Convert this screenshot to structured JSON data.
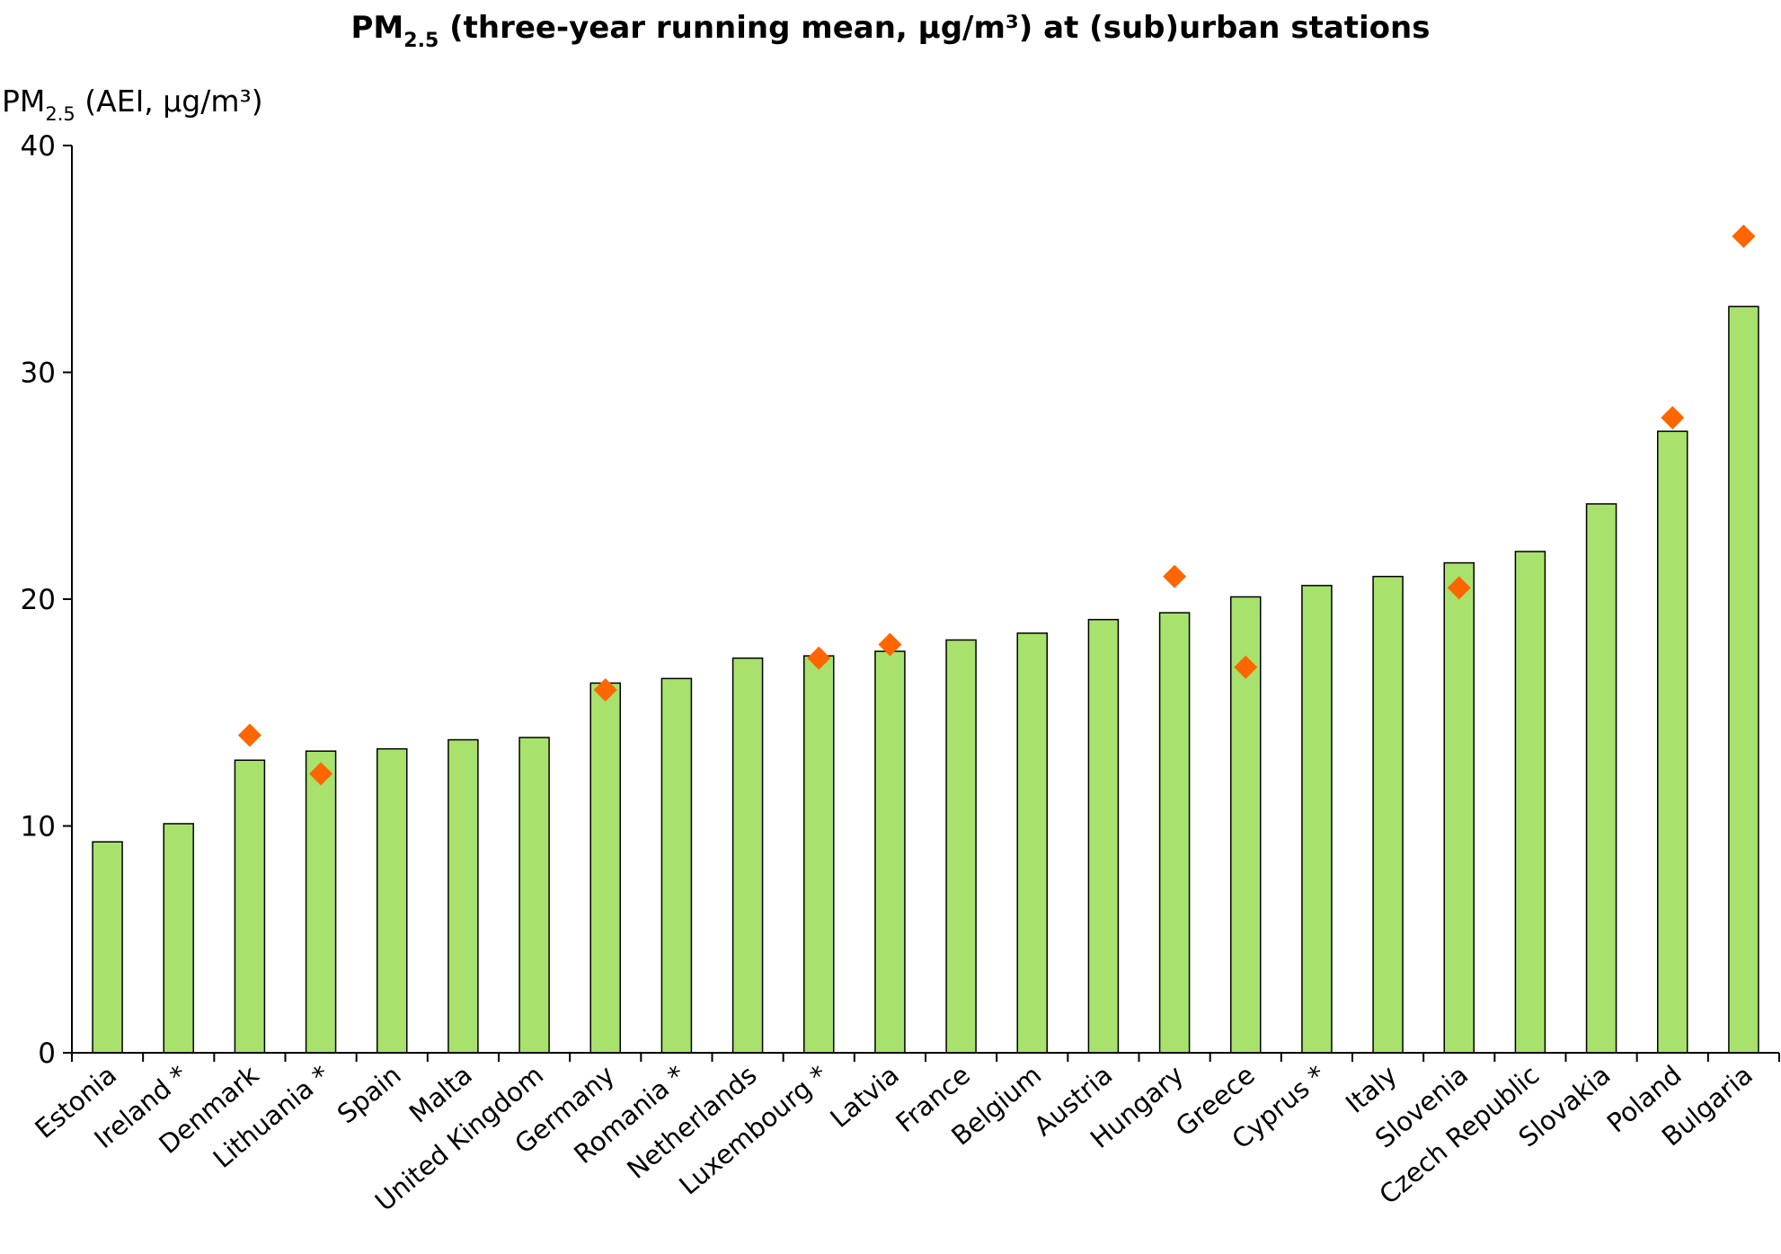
{
  "chart_data": {
    "type": "bar",
    "title": {
      "main": "PM",
      "sub": "2.5",
      "rest": " (three-year running mean, µg/m³) at (sub)urban stations"
    },
    "ylabel": {
      "main": "PM",
      "sub": "2.5",
      "rest": " (AEI, µg/m³)"
    },
    "ylim": [
      0,
      40
    ],
    "yticks": [
      "0",
      "10",
      "20",
      "30",
      "40"
    ],
    "grid": false,
    "legend": "none",
    "categories": [
      "Estonia",
      "Ireland *",
      "Denmark",
      "Lithuania *",
      "Spain",
      "Malta",
      "United Kingdom",
      "Germany",
      "Romania *",
      "Netherlands",
      "Luxembourg *",
      "Latvia",
      "France",
      "Belgium",
      "Austria",
      "Hungary",
      "Greece",
      "Cyprus *",
      "Italy",
      "Slovenia",
      "Czech Republic",
      "Slovakia",
      "Poland",
      "Bulgaria"
    ],
    "series": [
      {
        "type": "bar",
        "color": "#a8e26c",
        "values": [
          9.3,
          10.1,
          12.9,
          13.3,
          13.4,
          13.8,
          13.9,
          16.3,
          16.5,
          17.4,
          17.5,
          17.7,
          18.2,
          18.5,
          19.1,
          19.4,
          20.1,
          20.6,
          21.0,
          21.6,
          22.1,
          24.2,
          27.4,
          32.9
        ]
      },
      {
        "type": "marker",
        "shape": "diamond",
        "color": "#ff6600",
        "values": [
          null,
          null,
          14.0,
          12.3,
          null,
          null,
          null,
          16.0,
          null,
          null,
          17.4,
          18.0,
          null,
          null,
          null,
          21.0,
          17.0,
          null,
          null,
          20.5,
          null,
          null,
          28.0,
          36.0
        ]
      }
    ]
  }
}
